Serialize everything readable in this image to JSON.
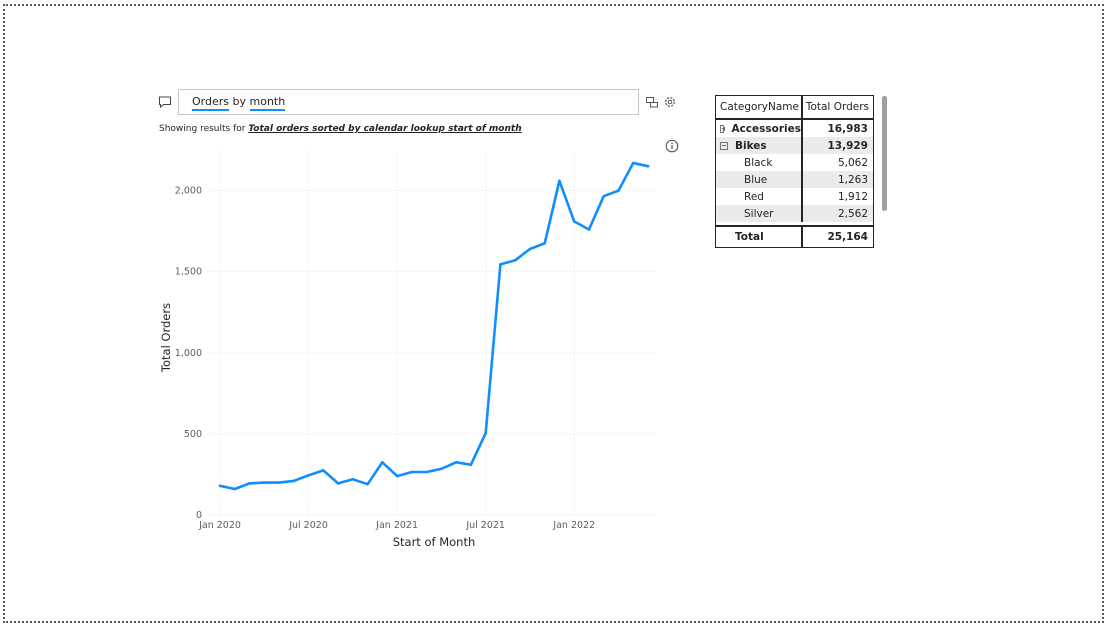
{
  "qa": {
    "query_words": [
      {
        "text": "Orders",
        "term": true
      },
      {
        "text": " by ",
        "term": false
      },
      {
        "text": "month",
        "term": true
      }
    ],
    "showing_prefix": "Showing results for ",
    "showing_result": "Total orders sorted by calendar lookup start of month"
  },
  "icons": {
    "qa": "speech-bubble-icon",
    "tools": [
      "table-view-icon",
      "gear-icon"
    ],
    "info": "info-icon"
  },
  "chart_data": {
    "type": "line",
    "xlabel": "Start of Month",
    "ylabel": "Total Orders",
    "x_ticks": [
      "Jan 2020",
      "Jul 2020",
      "Jan 2021",
      "Jul 2021",
      "Jan 2022"
    ],
    "y_ticks": [
      "0",
      "500",
      "1,000",
      "1,500",
      "2,000"
    ],
    "ylim": [
      0,
      2250
    ],
    "grid": true,
    "line_color": "#118dff",
    "series": [
      {
        "x": [
          "2020-01",
          "2020-02",
          "2020-03",
          "2020-04",
          "2020-05",
          "2020-06",
          "2020-07",
          "2020-08",
          "2020-09",
          "2020-10",
          "2020-11",
          "2020-12",
          "2021-01",
          "2021-02",
          "2021-03",
          "2021-04",
          "2021-05",
          "2021-06",
          "2021-07",
          "2021-08",
          "2021-09",
          "2021-10",
          "2021-11",
          "2021-12",
          "2022-01",
          "2022-02",
          "2022-03",
          "2022-04",
          "2022-05",
          "2022-06"
        ],
        "values": [
          180,
          160,
          195,
          200,
          200,
          210,
          245,
          275,
          195,
          220,
          190,
          325,
          240,
          265,
          265,
          285,
          325,
          310,
          505,
          1545,
          1570,
          1640,
          1675,
          2060,
          1810,
          1760,
          1965,
          2000,
          2170,
          2150
        ]
      }
    ]
  },
  "matrix": {
    "headers": [
      "CategoryName",
      "Total Orders"
    ],
    "rows": [
      {
        "label": "Accessories",
        "value": "16,983",
        "level": 0,
        "expander": "plus",
        "bold": true,
        "shade": false
      },
      {
        "label": "Bikes",
        "value": "13,929",
        "level": 0,
        "expander": "minus",
        "bold": true,
        "shade": true
      },
      {
        "label": "Black",
        "value": "5,062",
        "level": 1,
        "bold": false,
        "shade": false
      },
      {
        "label": "Blue",
        "value": "1,263",
        "level": 1,
        "bold": false,
        "shade": true
      },
      {
        "label": "Red",
        "value": "1,912",
        "level": 1,
        "bold": false,
        "shade": false
      },
      {
        "label": "Silver",
        "value": "2,562",
        "level": 1,
        "bold": false,
        "shade": true
      }
    ],
    "total_label": "Total",
    "total_value": "25,164"
  }
}
